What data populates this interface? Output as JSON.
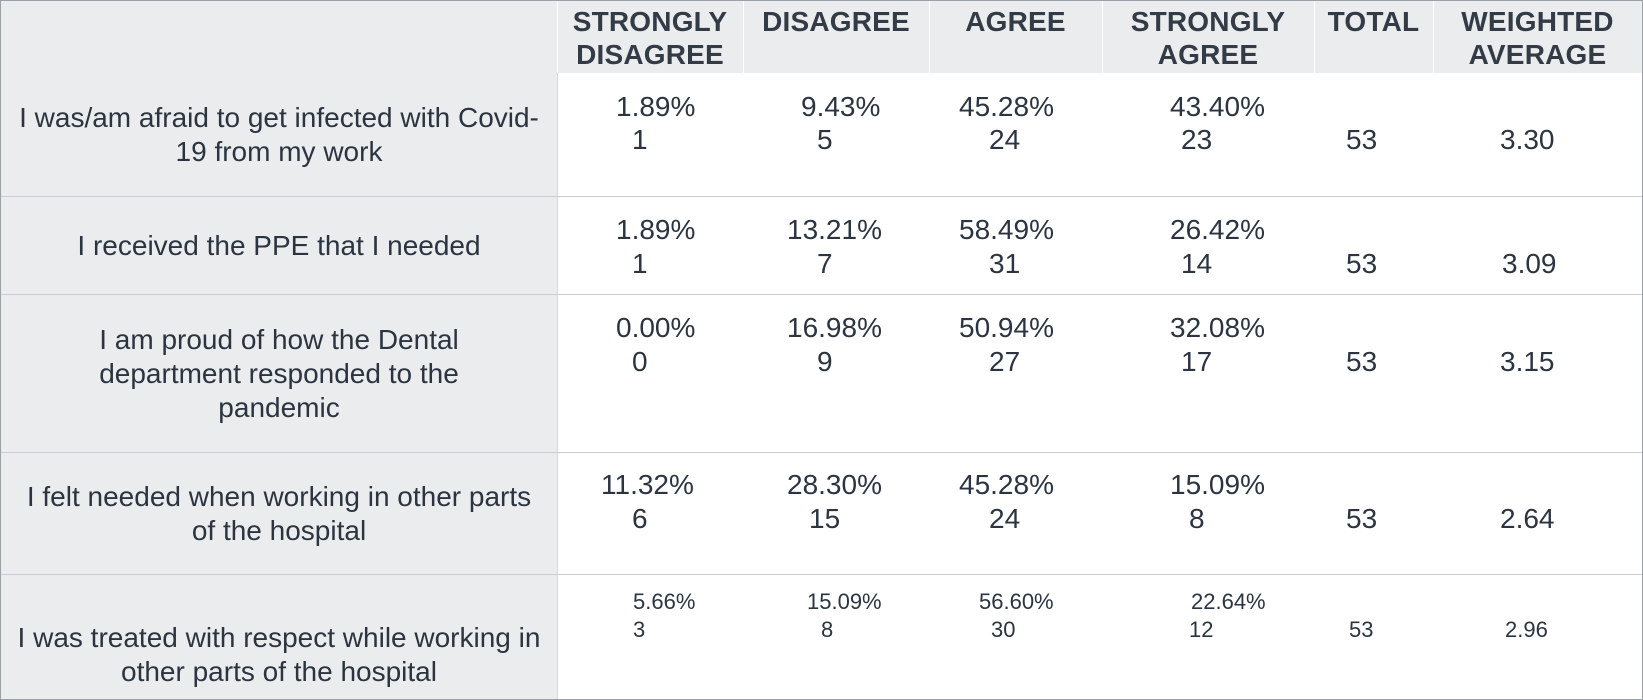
{
  "table": {
    "headers": {
      "strongly_disagree": [
        "STRONGLY",
        "DISAGREE"
      ],
      "disagree": "DISAGREE",
      "agree": "AGREE",
      "strongly_agree": [
        "STRONGLY",
        "AGREE"
      ],
      "total": "TOTAL",
      "weighted_average": [
        "WEIGHTED",
        "AVERAGE"
      ]
    },
    "rows": [
      {
        "question": "I was/am afraid to get infected with Covid-19 from my work",
        "strongly_disagree": {
          "pct": "1.89%",
          "count": "1"
        },
        "disagree": {
          "pct": "9.43%",
          "count": "5"
        },
        "agree": {
          "pct": "45.28%",
          "count": "24"
        },
        "strongly_agree": {
          "pct": "43.40%",
          "count": "23"
        },
        "total": "53",
        "weighted_average": "3.30"
      },
      {
        "question": "I received the PPE that I needed",
        "strongly_disagree": {
          "pct": "1.89%",
          "count": "1"
        },
        "disagree": {
          "pct": "13.21%",
          "count": "7"
        },
        "agree": {
          "pct": "58.49%",
          "count": "31"
        },
        "strongly_agree": {
          "pct": "26.42%",
          "count": "14"
        },
        "total": "53",
        "weighted_average": "3.09"
      },
      {
        "question": "I am proud of how the Dental department responded to the pandemic",
        "strongly_disagree": {
          "pct": "0.00%",
          "count": "0"
        },
        "disagree": {
          "pct": "16.98%",
          "count": "9"
        },
        "agree": {
          "pct": "50.94%",
          "count": "27"
        },
        "strongly_agree": {
          "pct": "32.08%",
          "count": "17"
        },
        "total": "53",
        "weighted_average": "3.15"
      },
      {
        "question": "I felt needed when working in other parts of the hospital",
        "strongly_disagree": {
          "pct": "11.32%",
          "count": "6"
        },
        "disagree": {
          "pct": "28.30%",
          "count": "15"
        },
        "agree": {
          "pct": "45.28%",
          "count": "24"
        },
        "strongly_agree": {
          "pct": "15.09%",
          "count": "8"
        },
        "total": "53",
        "weighted_average": "2.64"
      },
      {
        "question": "I was treated with respect while working in other parts of the hospital",
        "strongly_disagree": {
          "pct": "5.66%",
          "count": "3"
        },
        "disagree": {
          "pct": "15.09%",
          "count": "8"
        },
        "agree": {
          "pct": "56.60%",
          "count": "30"
        },
        "strongly_agree": {
          "pct": "22.64%",
          "count": "12"
        },
        "total": "53",
        "weighted_average": "2.96"
      }
    ]
  }
}
